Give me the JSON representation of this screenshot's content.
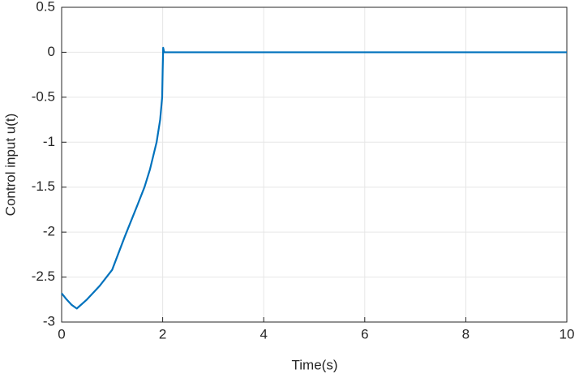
{
  "chart_data": {
    "type": "line",
    "xlabel": "Time(s)",
    "ylabel": "Control input u(t)",
    "x": [
      0,
      0.1,
      0.2,
      0.3,
      0.5,
      0.75,
      1.0,
      1.25,
      1.5,
      1.64,
      1.75,
      1.88,
      1.95,
      1.99,
      2.0,
      2.01,
      2.03,
      4,
      6,
      8,
      10
    ],
    "values": [
      -2.68,
      -2.75,
      -2.81,
      -2.85,
      -2.75,
      -2.6,
      -2.42,
      -2.05,
      -1.7,
      -1.5,
      -1.3,
      -1.0,
      -0.75,
      -0.5,
      -0.2,
      0.05,
      0,
      0,
      0,
      0,
      0
    ],
    "color": "#0072bd",
    "xlim": [
      0,
      10
    ],
    "xticks": [
      0,
      2,
      4,
      6,
      8,
      10
    ],
    "ylim": [
      -3,
      0.5
    ],
    "yticks": [
      -3,
      -2.5,
      -2,
      -1.5,
      -1,
      -0.5,
      0,
      0.5
    ],
    "grid": true
  }
}
